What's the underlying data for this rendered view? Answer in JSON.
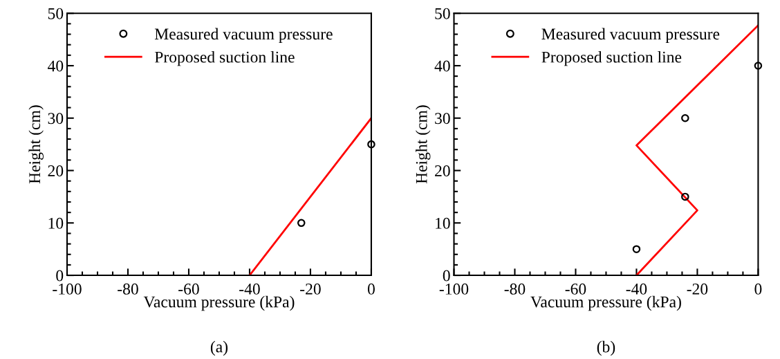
{
  "chart_data": [
    {
      "type": "scatter",
      "xlabel": "Vacuum pressure (kPa)",
      "ylabel": "Height (cm)",
      "annotations": [
        "(a)"
      ],
      "xlim": [
        -100,
        0
      ],
      "xticks": [
        -100,
        -80,
        -60,
        -40,
        -20,
        0
      ],
      "ylim": [
        0,
        50
      ],
      "yticks": [
        0,
        10,
        20,
        30,
        40,
        50
      ],
      "legend": "top",
      "grid": false,
      "series": [
        {
          "name": "Measured vacuum pressure",
          "color": "#000000",
          "marker": "circle",
          "x": [
            -23,
            0
          ],
          "values": [
            10,
            25
          ]
        },
        {
          "name": "Proposed suction line",
          "type": "line",
          "color": "#ff0000",
          "marker": "none",
          "line_style": "solid",
          "x": [
            -40,
            0
          ],
          "values": [
            0,
            30
          ]
        }
      ]
    },
    {
      "type": "scatter",
      "xlabel": "Vacuum pressure (kPa)",
      "ylabel": "Height (cm)",
      "annotations": [
        "(b)"
      ],
      "xlim": [
        -100,
        0
      ],
      "xticks": [
        -100,
        -80,
        -60,
        -40,
        -20,
        0
      ],
      "ylim": [
        0,
        50
      ],
      "yticks": [
        0,
        10,
        20,
        30,
        40,
        50
      ],
      "legend": "top",
      "grid": false,
      "series": [
        {
          "name": "Measured vacuum pressure",
          "color": "#000000",
          "marker": "circle",
          "x": [
            -40,
            -24,
            -24,
            0
          ],
          "values": [
            5,
            15,
            30,
            40
          ]
        },
        {
          "name": "Proposed suction line",
          "type": "line",
          "color": "#ff0000",
          "marker": "none",
          "line_style": "solid",
          "x": [
            -40,
            -20,
            -40,
            0
          ],
          "values": [
            0,
            12.4,
            24.8,
            47.7
          ]
        }
      ]
    }
  ]
}
